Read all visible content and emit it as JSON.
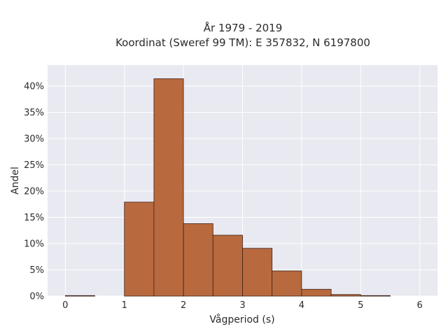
{
  "chart_data": {
    "type": "bar",
    "title_line1": "År 1979 - 2019",
    "title_line2": "Koordinat (Sweref 99 TM): E 357832, N 6197800",
    "xlabel": "Vågperiod (s)",
    "ylabel": "Andel",
    "xlim": [
      -0.3,
      6.3
    ],
    "ylim": [
      0,
      0.44
    ],
    "x_ticks": [
      0,
      1,
      2,
      3,
      4,
      5,
      6
    ],
    "y_ticks": [
      0,
      0.05,
      0.1,
      0.15,
      0.2,
      0.25,
      0.3,
      0.35,
      0.4
    ],
    "y_tick_labels": [
      "0%",
      "5%",
      "10%",
      "15%",
      "20%",
      "25%",
      "30%",
      "35%",
      "40%"
    ],
    "bins": [
      {
        "x0": 0.0,
        "x1": 0.5,
        "value": 0.001
      },
      {
        "x0": 0.5,
        "x1": 1.0,
        "value": 0.0
      },
      {
        "x0": 1.0,
        "x1": 1.5,
        "value": 0.179
      },
      {
        "x0": 1.5,
        "x1": 2.0,
        "value": 0.414
      },
      {
        "x0": 2.0,
        "x1": 2.5,
        "value": 0.138
      },
      {
        "x0": 2.5,
        "x1": 3.0,
        "value": 0.116
      },
      {
        "x0": 3.0,
        "x1": 3.5,
        "value": 0.091
      },
      {
        "x0": 3.5,
        "x1": 4.0,
        "value": 0.048
      },
      {
        "x0": 4.0,
        "x1": 4.5,
        "value": 0.013
      },
      {
        "x0": 4.5,
        "x1": 5.0,
        "value": 0.003
      },
      {
        "x0": 5.0,
        "x1": 5.5,
        "value": 0.001
      }
    ],
    "grid": true,
    "colors": {
      "bar_fill": "#b8693e",
      "bar_stroke": "#3d2418",
      "plot_background": "#e9e9f1",
      "grid": "#ffffff"
    }
  }
}
